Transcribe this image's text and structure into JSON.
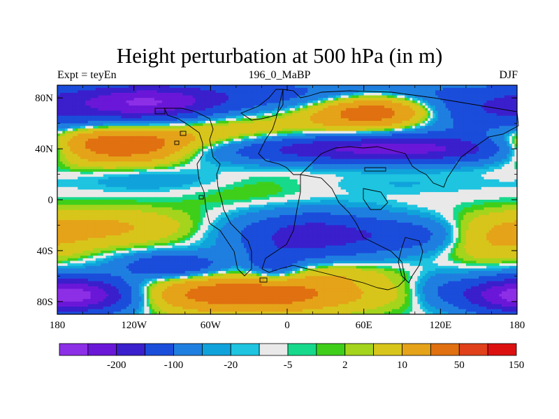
{
  "chart_data": {
    "type": "heatmap",
    "title": "Height perturbation at 500 hPa (in m)",
    "subtitle_left": "Expt = teyEn",
    "subtitle_center": "196_0_MaBP",
    "subtitle_right": "DJF",
    "xlim": [
      -180,
      180
    ],
    "ylim": [
      -90,
      90
    ],
    "x_ticks": [
      {
        "value": -180,
        "label": "180"
      },
      {
        "value": -120,
        "label": "120W"
      },
      {
        "value": -60,
        "label": "60W"
      },
      {
        "value": 0,
        "label": "0"
      },
      {
        "value": 60,
        "label": "60E"
      },
      {
        "value": 120,
        "label": "120E"
      },
      {
        "value": 180,
        "label": "180"
      }
    ],
    "y_ticks": [
      {
        "value": 80,
        "label": "80N"
      },
      {
        "value": 40,
        "label": "40N"
      },
      {
        "value": 0,
        "label": "0"
      },
      {
        "value": -40,
        "label": "40S"
      },
      {
        "value": -80,
        "label": "80S"
      }
    ],
    "colorbar": {
      "colors": [
        "#8c2fe6",
        "#6a17d8",
        "#3a1fcc",
        "#1b4ddb",
        "#1f7fe0",
        "#10a3db",
        "#1ec4e0",
        "#e9e9e9",
        "#17d98b",
        "#3fcf1a",
        "#a5d41c",
        "#d7c51b",
        "#e5a319",
        "#e07010",
        "#e0401a",
        "#dd1010"
      ],
      "labels": [
        {
          "after_index": 1,
          "text": "-200"
        },
        {
          "after_index": 3,
          "text": "-100"
        },
        {
          "after_index": 5,
          "text": "-20"
        },
        {
          "after_index": 7,
          "text": "-5"
        },
        {
          "after_index": 9,
          "text": "2"
        },
        {
          "after_index": 11,
          "text": "10"
        },
        {
          "after_index": 13,
          "text": "50"
        },
        {
          "after_index": 15,
          "text": "150"
        }
      ]
    },
    "field_blobs": [
      {
        "lon": -30,
        "lat": 82,
        "rlon": 200,
        "rlat": 14,
        "amp": -70
      },
      {
        "lon": -110,
        "lat": 75,
        "rlon": 55,
        "rlat": 14,
        "amp": -150
      },
      {
        "lon": 70,
        "lat": 70,
        "rlon": 50,
        "rlat": 13,
        "amp": 170
      },
      {
        "lon": 150,
        "lat": 68,
        "rlon": 70,
        "rlat": 18,
        "amp": -90
      },
      {
        "lon": -20,
        "lat": 58,
        "rlon": 100,
        "rlat": 12,
        "amp": 30
      },
      {
        "lon": -140,
        "lat": 42,
        "rlon": 55,
        "rlat": 13,
        "amp": 200
      },
      {
        "lon": -60,
        "lat": 46,
        "rlon": 60,
        "rlat": 11,
        "amp": 40
      },
      {
        "lon": 80,
        "lat": 40,
        "rlon": 140,
        "rlat": 11,
        "amp": -170
      },
      {
        "lon": -100,
        "lat": 16,
        "rlon": 60,
        "rlat": 10,
        "amp": -22
      },
      {
        "lon": -30,
        "lat": 8,
        "rlon": 60,
        "rlat": 18,
        "amp": 12
      },
      {
        "lon": 90,
        "lat": 12,
        "rlon": 80,
        "rlat": 8,
        "amp": -10
      },
      {
        "lon": -150,
        "lat": -22,
        "rlon": 70,
        "rlat": 14,
        "amp": 60
      },
      {
        "lon": 20,
        "lat": -28,
        "rlon": 60,
        "rlat": 18,
        "amp": -130
      },
      {
        "lon": 100,
        "lat": -28,
        "rlon": 40,
        "rlat": 13,
        "amp": -60
      },
      {
        "lon": 160,
        "lat": -35,
        "rlon": 40,
        "rlat": 15,
        "amp": 40
      },
      {
        "lon": -90,
        "lat": -52,
        "rlon": 40,
        "rlat": 10,
        "amp": -100
      },
      {
        "lon": -10,
        "lat": -52,
        "rlon": 20,
        "rlat": 13,
        "amp": -70
      },
      {
        "lon": 40,
        "lat": -58,
        "rlon": 40,
        "rlat": 8,
        "amp": 30
      },
      {
        "lon": -150,
        "lat": -75,
        "rlon": 40,
        "rlat": 14,
        "amp": -150
      },
      {
        "lon": -30,
        "lat": -74,
        "rlon": 85,
        "rlat": 14,
        "amp": 150
      },
      {
        "lon": 170,
        "lat": -75,
        "rlon": 40,
        "rlat": 14,
        "amp": -160
      },
      {
        "lon": 120,
        "lat": -70,
        "rlon": 20,
        "rlat": 14,
        "amp": -30
      }
    ]
  }
}
